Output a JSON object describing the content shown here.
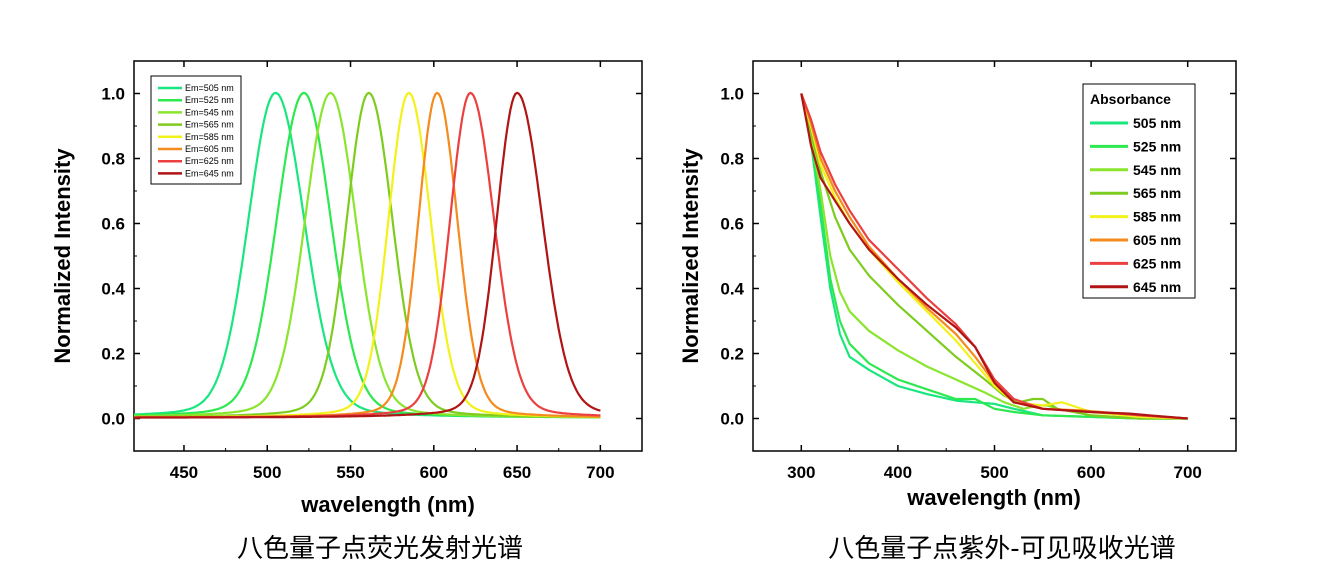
{
  "chart_data": [
    {
      "type": "line",
      "xlabel": "wavelength (nm)",
      "ylabel": "Normalized Intensity",
      "xlim": [
        420,
        725
      ],
      "ylim": [
        -0.1,
        1.1
      ],
      "xticks": [
        "450",
        "500",
        "550",
        "600",
        "650",
        "700"
      ],
      "yticks": [
        "0.0",
        "0.2",
        "0.4",
        "0.6",
        "0.8",
        "1.0"
      ],
      "legend_position": "top-left",
      "series": [
        {
          "name": "Em=505 nm",
          "color": "#19e67f",
          "peak": 505,
          "width_left": 16,
          "width_right": 17,
          "x_start": 420,
          "x_end": 700
        },
        {
          "name": "Em=525 nm",
          "color": "#2ee84f",
          "peak": 522,
          "width_left": 16,
          "width_right": 16,
          "x_start": 420,
          "x_end": 700
        },
        {
          "name": "Em=545 nm",
          "color": "#8be52e",
          "peak": 538,
          "width_left": 15,
          "width_right": 15,
          "x_start": 420,
          "x_end": 700
        },
        {
          "name": "Em=565 nm",
          "color": "#7fcc20",
          "peak": 561,
          "width_left": 13,
          "width_right": 14,
          "x_start": 420,
          "x_end": 700
        },
        {
          "name": "Em=585 nm",
          "color": "#f2f21b",
          "peak": 585,
          "width_left": 12,
          "width_right": 13,
          "x_start": 420,
          "x_end": 700
        },
        {
          "name": "Em=605 nm",
          "color": "#f58a1e",
          "peak": 602,
          "width_left": 11,
          "width_right": 12,
          "x_start": 420,
          "x_end": 700
        },
        {
          "name": "Em=625 nm",
          "color": "#ec4040",
          "peak": 622,
          "width_left": 12,
          "width_right": 14,
          "x_start": 420,
          "x_end": 700
        },
        {
          "name": "Em=645 nm",
          "color": "#b01414",
          "peak": 650,
          "width_left": 12,
          "width_right": 15,
          "x_start": 420,
          "x_end": 700
        }
      ]
    },
    {
      "type": "line",
      "xlabel": "wavelength (nm)",
      "ylabel": "Normalized Intensity",
      "xlim": [
        250,
        750
      ],
      "ylim": [
        -0.1,
        1.1
      ],
      "xticks": [
        "300",
        "400",
        "500",
        "600",
        "700"
      ],
      "yticks": [
        "0.0",
        "0.2",
        "0.4",
        "0.6",
        "0.8",
        "1.0"
      ],
      "legend_title": "Absorbance",
      "legend_position": "top-right",
      "series": [
        {
          "name": "505 nm",
          "color": "#19e67f",
          "points": [
            [
              300,
              1.0
            ],
            [
              310,
              0.85
            ],
            [
              320,
              0.62
            ],
            [
              330,
              0.4
            ],
            [
              340,
              0.26
            ],
            [
              350,
              0.19
            ],
            [
              370,
              0.15
            ],
            [
              400,
              0.1
            ],
            [
              430,
              0.075
            ],
            [
              460,
              0.055
            ],
            [
              480,
              0.05
            ],
            [
              500,
              0.045
            ],
            [
              520,
              0.03
            ],
            [
              550,
              0.01
            ],
            [
              600,
              0.005
            ],
            [
              650,
              0.0
            ],
            [
              700,
              0.0
            ]
          ]
        },
        {
          "name": "525 nm",
          "color": "#2ee84f",
          "points": [
            [
              300,
              1.0
            ],
            [
              310,
              0.86
            ],
            [
              320,
              0.66
            ],
            [
              330,
              0.43
            ],
            [
              340,
              0.3
            ],
            [
              350,
              0.23
            ],
            [
              370,
              0.17
            ],
            [
              400,
              0.12
            ],
            [
              430,
              0.09
            ],
            [
              460,
              0.06
            ],
            [
              480,
              0.06
            ],
            [
              500,
              0.03
            ],
            [
              520,
              0.02
            ],
            [
              550,
              0.01
            ],
            [
              600,
              0.005
            ],
            [
              650,
              0.0
            ],
            [
              700,
              0.0
            ]
          ]
        },
        {
          "name": "545 nm",
          "color": "#8be52e",
          "points": [
            [
              300,
              1.0
            ],
            [
              310,
              0.87
            ],
            [
              320,
              0.7
            ],
            [
              330,
              0.5
            ],
            [
              340,
              0.39
            ],
            [
              350,
              0.33
            ],
            [
              370,
              0.27
            ],
            [
              400,
              0.21
            ],
            [
              430,
              0.16
            ],
            [
              460,
              0.12
            ],
            [
              490,
              0.08
            ],
            [
              510,
              0.05
            ],
            [
              530,
              0.03
            ],
            [
              545,
              0.04
            ],
            [
              555,
              0.04
            ],
            [
              565,
              0.03
            ],
            [
              600,
              0.01
            ],
            [
              650,
              0.0
            ],
            [
              700,
              0.0
            ]
          ]
        },
        {
          "name": "565 nm",
          "color": "#7fcc20",
          "points": [
            [
              300,
              1.0
            ],
            [
              310,
              0.88
            ],
            [
              320,
              0.76
            ],
            [
              335,
              0.62
            ],
            [
              350,
              0.52
            ],
            [
              370,
              0.44
            ],
            [
              400,
              0.35
            ],
            [
              430,
              0.27
            ],
            [
              460,
              0.19
            ],
            [
              490,
              0.12
            ],
            [
              510,
              0.07
            ],
            [
              525,
              0.05
            ],
            [
              540,
              0.06
            ],
            [
              550,
              0.06
            ],
            [
              565,
              0.03
            ],
            [
              600,
              0.01
            ],
            [
              650,
              0.0
            ],
            [
              700,
              0.0
            ]
          ]
        },
        {
          "name": "585 nm",
          "color": "#f2f21b",
          "points": [
            [
              300,
              1.0
            ],
            [
              310,
              0.9
            ],
            [
              320,
              0.78
            ],
            [
              335,
              0.68
            ],
            [
              350,
              0.6
            ],
            [
              370,
              0.52
            ],
            [
              400,
              0.42
            ],
            [
              430,
              0.33
            ],
            [
              460,
              0.24
            ],
            [
              480,
              0.17
            ],
            [
              500,
              0.1
            ],
            [
              520,
              0.05
            ],
            [
              550,
              0.04
            ],
            [
              570,
              0.05
            ],
            [
              580,
              0.04
            ],
            [
              600,
              0.02
            ],
            [
              650,
              0.005
            ],
            [
              700,
              0.0
            ]
          ]
        },
        {
          "name": "605 nm",
          "color": "#f58a1e",
          "points": [
            [
              300,
              1.0
            ],
            [
              310,
              0.91
            ],
            [
              320,
              0.8
            ],
            [
              335,
              0.7
            ],
            [
              350,
              0.62
            ],
            [
              370,
              0.53
            ],
            [
              400,
              0.43
            ],
            [
              430,
              0.34
            ],
            [
              460,
              0.26
            ],
            [
              480,
              0.19
            ],
            [
              500,
              0.11
            ],
            [
              520,
              0.05
            ],
            [
              550,
              0.03
            ],
            [
              590,
              0.025
            ],
            [
              610,
              0.02
            ],
            [
              650,
              0.01
            ],
            [
              700,
              0.0
            ]
          ]
        },
        {
          "name": "625 nm",
          "color": "#ec4040",
          "points": [
            [
              300,
              1.0
            ],
            [
              310,
              0.92
            ],
            [
              320,
              0.82
            ],
            [
              335,
              0.72
            ],
            [
              350,
              0.64
            ],
            [
              370,
              0.55
            ],
            [
              400,
              0.46
            ],
            [
              430,
              0.37
            ],
            [
              460,
              0.29
            ],
            [
              480,
              0.22
            ],
            [
              500,
              0.12
            ],
            [
              520,
              0.06
            ],
            [
              550,
              0.03
            ],
            [
              600,
              0.02
            ],
            [
              630,
              0.015
            ],
            [
              650,
              0.01
            ],
            [
              700,
              0.0
            ]
          ]
        },
        {
          "name": "645 nm",
          "color": "#b01414",
          "points": [
            [
              300,
              1.0
            ],
            [
              310,
              0.84
            ],
            [
              320,
              0.74
            ],
            [
              335,
              0.67
            ],
            [
              350,
              0.6
            ],
            [
              370,
              0.52
            ],
            [
              400,
              0.43
            ],
            [
              430,
              0.35
            ],
            [
              460,
              0.28
            ],
            [
              480,
              0.22
            ],
            [
              500,
              0.11
            ],
            [
              520,
              0.05
            ],
            [
              550,
              0.03
            ],
            [
              600,
              0.02
            ],
            [
              640,
              0.015
            ],
            [
              660,
              0.01
            ],
            [
              700,
              0.0
            ]
          ]
        }
      ]
    }
  ],
  "captions": {
    "left": "八色量子点荧光发射光谱",
    "right": "八色量子点紫外-可见吸收光谱"
  }
}
